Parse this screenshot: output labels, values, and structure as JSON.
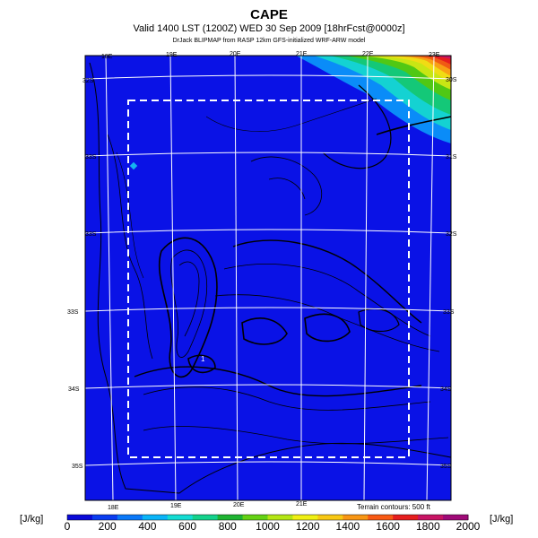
{
  "header": {
    "title": "CAPE",
    "valid_line": "Valid 1400 LST (1200Z) WED 30 Sep 2009 [18hrFcst@0000z]",
    "credit_line": "DrJack BLIPMAP from RASP 12km GFS-initialized WRF-ARW model"
  },
  "map": {
    "top_lon_labels": [
      "18E",
      "19E",
      "20E",
      "21E",
      "22E",
      "23E"
    ],
    "bottom_lon_labels": [
      "18E",
      "19E",
      "20E",
      "21E"
    ],
    "left_lat_labels": [
      "32S",
      "33S",
      "33S",
      "33S",
      "34S",
      "35S",
      "35S"
    ],
    "right_lat_labels": [
      "30S",
      "31S",
      "32S",
      "33S",
      "34S",
      "35S"
    ],
    "terrain_note": "Terrain contours: 500 ft",
    "point_label": "1",
    "colors": {
      "background": "#0a12e6",
      "grid": "#ffffff",
      "dashed_box": "#ffffff"
    }
  },
  "colorbar": {
    "unit_left": "[J/kg]",
    "unit_right": "[J/kg]",
    "ticks": [
      "0",
      "200",
      "400",
      "600",
      "800",
      "1000",
      "1200",
      "1400",
      "1600",
      "1800",
      "2000"
    ],
    "colors": [
      "#0a0ad8",
      "#0a3cf0",
      "#0a78f8",
      "#0ab4f8",
      "#14dcd2",
      "#14d28c",
      "#1eb432",
      "#64d214",
      "#b4e614",
      "#f0f014",
      "#f8c814",
      "#f89614",
      "#f85a14",
      "#e61e1e",
      "#c81464",
      "#a00a78"
    ]
  }
}
